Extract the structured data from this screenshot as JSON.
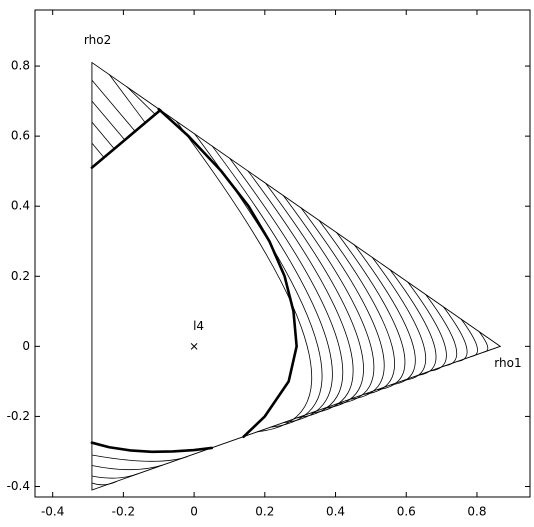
{
  "chart_data": {
    "type": "line",
    "xlim": [
      -0.45,
      0.95
    ],
    "ylim": [
      -0.43,
      0.96
    ],
    "xticks": [
      -0.4,
      -0.2,
      0,
      0.2,
      0.4,
      0.6,
      0.8
    ],
    "yticks": [
      -0.4,
      -0.2,
      0,
      0.2,
      0.4,
      0.6,
      0.8
    ],
    "color": "#000000",
    "triangle": {
      "x": [
        0.866,
        -0.289,
        -0.289
      ],
      "y": [
        0,
        0.81,
        -0.41
      ]
    },
    "vertex_labels": [
      "rho1",
      "rho2",
      null
    ],
    "point": {
      "label": "l4",
      "x": 0,
      "y": 0
    },
    "boundary": [
      {
        "x": [
          -0.1,
          -0.016,
          0.077,
          0.154,
          0.213,
          0.256,
          0.281,
          0.29,
          0.2675,
          0.2,
          0.14
        ],
        "y": [
          0.677,
          0.6,
          0.5,
          0.4,
          0.3,
          0.2,
          0.1,
          0,
          -0.1,
          -0.2,
          -0.258
        ]
      },
      {
        "x": [
          -0.289,
          -0.096
        ],
        "y": [
          0.51,
          0.674
        ]
      },
      {
        "x": [
          -0.289,
          -0.24,
          -0.18,
          -0.12,
          -0.06,
          0.0,
          0.05
        ],
        "y": [
          -0.275,
          -0.288,
          -0.297,
          -0.301,
          -0.3,
          -0.296,
          -0.29
        ]
      }
    ],
    "hatch": [
      {
        "x": [
          -0.05,
          0.32,
          0.178
        ],
        "y": [
          0.642,
          0,
          -0.244
        ]
      },
      {
        "x": [
          0.001,
          0.35,
          0.216
        ],
        "y": [
          0.607,
          0,
          -0.231
        ]
      },
      {
        "x": [
          0.051,
          0.38,
          0.253
        ],
        "y": [
          0.572,
          0,
          -0.218
        ]
      },
      {
        "x": [
          0.101,
          0.41,
          0.291
        ],
        "y": [
          0.536,
          0,
          -0.204
        ]
      },
      {
        "x": [
          0.152,
          0.44,
          0.329
        ],
        "y": [
          0.501,
          0,
          -0.191
        ]
      },
      {
        "x": [
          0.202,
          0.47,
          0.367
        ],
        "y": [
          0.466,
          0,
          -0.177
        ]
      },
      {
        "x": [
          0.252,
          0.5,
          0.405
        ],
        "y": [
          0.431,
          0,
          -0.164
        ]
      },
      {
        "x": [
          0.302,
          0.53,
          0.442
        ],
        "y": [
          0.396,
          0,
          -0.151
        ]
      },
      {
        "x": [
          0.353,
          0.56,
          0.48
        ],
        "y": [
          0.36,
          0,
          -0.137
        ]
      },
      {
        "x": [
          0.403,
          0.59,
          0.518
        ],
        "y": [
          0.325,
          0,
          -0.124
        ]
      },
      {
        "x": [
          0.453,
          0.62,
          0.556
        ],
        "y": [
          0.29,
          0,
          -0.11
        ]
      },
      {
        "x": [
          0.504,
          0.65,
          0.594
        ],
        "y": [
          0.254,
          0,
          -0.097
        ]
      },
      {
        "x": [
          0.554,
          0.68,
          0.631
        ],
        "y": [
          0.219,
          0,
          -0.083
        ]
      },
      {
        "x": [
          0.604,
          0.71,
          0.669
        ],
        "y": [
          0.184,
          0,
          -0.07
        ]
      },
      {
        "x": [
          0.655,
          0.74,
          0.707
        ],
        "y": [
          0.148,
          0,
          -0.056
        ]
      },
      {
        "x": [
          0.705,
          0.77,
          0.745
        ],
        "y": [
          0.113,
          0,
          -0.043
        ]
      },
      {
        "x": [
          0.755,
          0.8,
          0.783
        ],
        "y": [
          0.078,
          0,
          -0.029
        ]
      },
      {
        "x": [
          0.806,
          0.83,
          0.82
        ],
        "y": [
          0.042,
          0,
          -0.016
        ]
      },
      {
        "x": [
          -0.289,
          -0.255
        ],
        "y": [
          0.58,
          0.539
        ]
      },
      {
        "x": [
          -0.289,
          -0.226
        ],
        "y": [
          0.64,
          0.564
        ]
      },
      {
        "x": [
          -0.289,
          -0.196
        ],
        "y": [
          0.7,
          0.589
        ]
      },
      {
        "x": [
          -0.289,
          -0.167
        ],
        "y": [
          0.76,
          0.614
        ]
      },
      {
        "x": [
          -0.24,
          -0.138
        ],
        "y": [
          0.776,
          0.638
        ]
      },
      {
        "x": [
          -0.19,
          -0.11
        ],
        "y": [
          0.741,
          0.662
        ]
      },
      {
        "x": [
          -0.289,
          -0.13,
          -0.02
        ],
        "y": [
          -0.31,
          -0.328,
          -0.315
        ]
      },
      {
        "x": [
          -0.289,
          -0.18,
          -0.09
        ],
        "y": [
          -0.34,
          -0.352,
          -0.339
        ]
      },
      {
        "x": [
          -0.289,
          -0.22,
          -0.16
        ],
        "y": [
          -0.37,
          -0.376,
          -0.364
        ]
      },
      {
        "x": [
          -0.289,
          -0.255,
          -0.22
        ],
        "y": [
          -0.39,
          -0.395,
          -0.386
        ]
      }
    ]
  }
}
